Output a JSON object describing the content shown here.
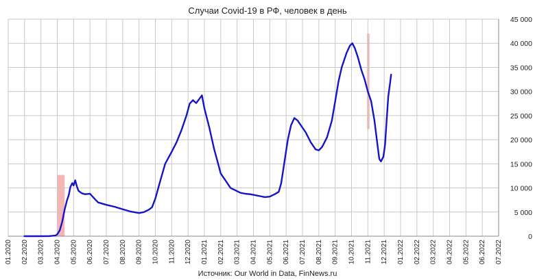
{
  "colors": {
    "line": "#1414c8",
    "highlight": "#f4a8a8",
    "grid": "#c8c8c8",
    "axis": "#888888"
  },
  "chart_data": {
    "type": "line",
    "title": "Случаи Covid-19 в РФ, человек в день",
    "source": "Источник: Our World in Data, FinNews.ru",
    "x_tick_labels": [
      "01.2020",
      "02.2020",
      "03.2020",
      "04.2020",
      "05.2020",
      "06.2020",
      "07.2020",
      "08.2020",
      "09.2020",
      "10.2020",
      "11.2020",
      "12.2020",
      "01.2021",
      "02.2021",
      "03.2021",
      "04.2021",
      "05.2021",
      "06.2021",
      "07.2021",
      "08.2021",
      "09.2021",
      "10.2021",
      "11.2021",
      "12.2021",
      "01.2022",
      "02.2022",
      "03.2022",
      "04.2022",
      "05.2022",
      "06.2022",
      "07.2022"
    ],
    "y_tick_labels": [
      "0",
      "5 000",
      "10 000",
      "15 000",
      "20 000",
      "25 000",
      "30 000",
      "35 000",
      "40 000",
      "45 000"
    ],
    "ylim": [
      0,
      45000
    ],
    "xlim": [
      0,
      30
    ],
    "y_axis_position": "right",
    "grid": true,
    "legend": false,
    "highlights": [
      {
        "x_start": 3.0,
        "x_end": 3.45,
        "y_start": 0,
        "y_end": 12700
      },
      {
        "x_start": 21.95,
        "x_end": 22.1,
        "y_start": 22200,
        "y_end": 42000
      }
    ],
    "series": [
      {
        "points": [
          [
            0.99,
            0
          ],
          [
            1.5,
            0
          ],
          [
            2.0,
            0
          ],
          [
            2.5,
            20
          ],
          [
            2.9,
            150
          ],
          [
            3.0,
            400
          ],
          [
            3.15,
            1200
          ],
          [
            3.3,
            3000
          ],
          [
            3.45,
            5500
          ],
          [
            3.6,
            7500
          ],
          [
            3.7,
            8500
          ],
          [
            3.8,
            10200
          ],
          [
            3.92,
            11000
          ],
          [
            4.0,
            10500
          ],
          [
            4.1,
            11600
          ],
          [
            4.2,
            10300
          ],
          [
            4.3,
            9400
          ],
          [
            4.5,
            8900
          ],
          [
            4.7,
            8700
          ],
          [
            5.0,
            8800
          ],
          [
            5.3,
            7700
          ],
          [
            5.5,
            7000
          ],
          [
            6.0,
            6500
          ],
          [
            6.5,
            6100
          ],
          [
            7.0,
            5600
          ],
          [
            7.5,
            5100
          ],
          [
            8.0,
            4800
          ],
          [
            8.3,
            5000
          ],
          [
            8.6,
            5500
          ],
          [
            8.8,
            6000
          ],
          [
            9.0,
            7800
          ],
          [
            9.3,
            11500
          ],
          [
            9.6,
            15000
          ],
          [
            10.0,
            17500
          ],
          [
            10.3,
            19500
          ],
          [
            10.6,
            22000
          ],
          [
            10.9,
            25000
          ],
          [
            11.1,
            27500
          ],
          [
            11.3,
            28200
          ],
          [
            11.5,
            27600
          ],
          [
            11.7,
            28500
          ],
          [
            11.85,
            29200
          ],
          [
            12.0,
            26500
          ],
          [
            12.3,
            22500
          ],
          [
            12.6,
            18000
          ],
          [
            12.8,
            15500
          ],
          [
            13.0,
            13000
          ],
          [
            13.3,
            11500
          ],
          [
            13.6,
            10000
          ],
          [
            13.9,
            9500
          ],
          [
            14.2,
            9000
          ],
          [
            14.5,
            8800
          ],
          [
            14.8,
            8700
          ],
          [
            15.1,
            8500
          ],
          [
            15.4,
            8300
          ],
          [
            15.7,
            8100
          ],
          [
            16.0,
            8200
          ],
          [
            16.3,
            8700
          ],
          [
            16.55,
            9200
          ],
          [
            16.7,
            11000
          ],
          [
            16.9,
            15500
          ],
          [
            17.1,
            20000
          ],
          [
            17.3,
            23000
          ],
          [
            17.5,
            24500
          ],
          [
            17.7,
            24000
          ],
          [
            17.9,
            23000
          ],
          [
            18.2,
            21500
          ],
          [
            18.5,
            19500
          ],
          [
            18.8,
            18000
          ],
          [
            19.0,
            17800
          ],
          [
            19.2,
            18500
          ],
          [
            19.5,
            20500
          ],
          [
            19.8,
            24000
          ],
          [
            20.0,
            28000
          ],
          [
            20.2,
            32000
          ],
          [
            20.4,
            35000
          ],
          [
            20.7,
            38000
          ],
          [
            20.9,
            39500
          ],
          [
            21.05,
            40000
          ],
          [
            21.2,
            39000
          ],
          [
            21.4,
            37000
          ],
          [
            21.6,
            34500
          ],
          [
            21.8,
            32500
          ],
          [
            22.0,
            30000
          ],
          [
            22.2,
            28000
          ],
          [
            22.4,
            24000
          ],
          [
            22.55,
            20000
          ],
          [
            22.7,
            16000
          ],
          [
            22.8,
            15500
          ],
          [
            22.95,
            16500
          ],
          [
            23.05,
            19000
          ],
          [
            23.15,
            24000
          ],
          [
            23.25,
            29000
          ],
          [
            23.35,
            31500
          ],
          [
            23.42,
            33500
          ]
        ]
      }
    ]
  }
}
